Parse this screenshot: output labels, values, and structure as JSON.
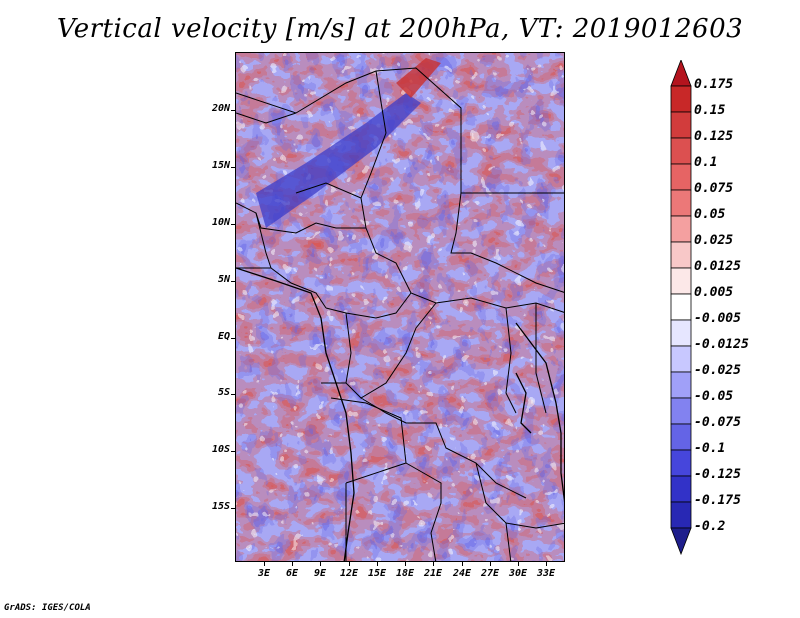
{
  "title": "Vertical velocity [m/s] at 200hPa, VT: 2019012603",
  "credit": "GrADS: IGES/COLA",
  "lat_ticks": [
    "20N",
    "15N",
    "10N",
    "5N",
    "EQ",
    "5S",
    "10S",
    "15S"
  ],
  "lon_ticks": [
    "3E",
    "6E",
    "9E",
    "12E",
    "15E",
    "18E",
    "21E",
    "24E",
    "27E",
    "30E",
    "33E"
  ],
  "colorbar": {
    "labels": [
      "0.175",
      "0.15",
      "0.125",
      "0.1",
      "0.075",
      "0.05",
      "0.025",
      "0.0125",
      "0.005",
      "-0.005",
      "-0.0125",
      "-0.025",
      "-0.05",
      "-0.075",
      "-0.1",
      "-0.125",
      "-0.175",
      "-0.2"
    ],
    "colors": [
      "#b4141e",
      "#c82828",
      "#d23c3c",
      "#dc5050",
      "#e66464",
      "#ec7878",
      "#f4a0a0",
      "#f8c8c8",
      "#fce8e8",
      "#ffffff",
      "#e6e6ff",
      "#c8c8ff",
      "#a0a0f8",
      "#8282f0",
      "#6464e6",
      "#4646dc",
      "#3232c8",
      "#2828b4",
      "#1e1e8c"
    ]
  }
}
